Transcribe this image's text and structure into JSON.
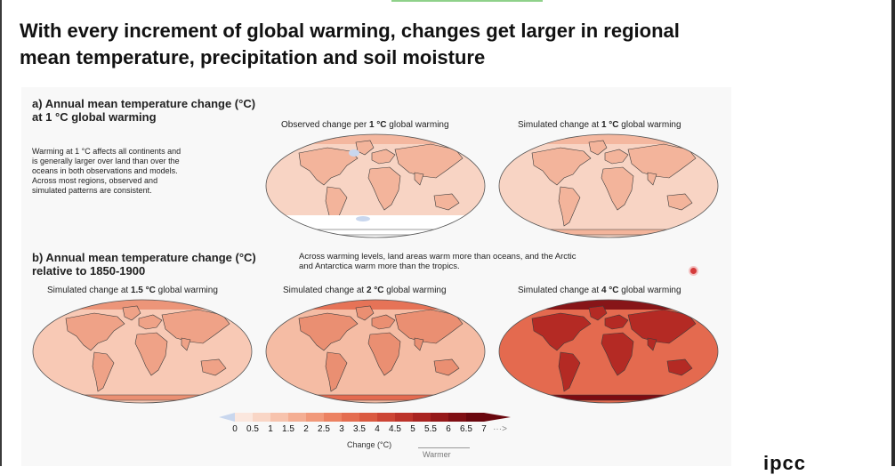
{
  "slide": {
    "title": "With every increment of global warming, changes get larger in regional mean temperature, precipitation and soil moisture"
  },
  "section_a": {
    "title_line1": "a) Annual mean temperature change (°C)",
    "title_line2": "at 1 °C global warming",
    "description": [
      "Warming at 1 °C affects all continents and",
      "is generally larger over land than over the",
      "oceans in both observations and models.",
      "Across most regions, observed and",
      "simulated patterns are consistent."
    ],
    "maps": [
      {
        "caption_pre": "Observed change per ",
        "caption_bold": "1 °C",
        "caption_post": " global warming",
        "level_c": 1,
        "observed": true
      },
      {
        "caption_pre": "Simulated change at ",
        "caption_bold": "1 °C",
        "caption_post": " global warming",
        "level_c": 1,
        "observed": false
      }
    ]
  },
  "section_b": {
    "title_line1": "b) Annual mean temperature change (°C)",
    "title_line2": "relative to 1850-1900",
    "note_line1": "Across warming levels, land areas warm more than oceans, and the Arctic",
    "note_line2": "and Antarctica warm more than the tropics.",
    "maps": [
      {
        "caption_pre": "Simulated change at ",
        "caption_bold": "1.5 °C",
        "caption_post": " global warming",
        "level_c": 1.5
      },
      {
        "caption_pre": "Simulated change at ",
        "caption_bold": "2 °C",
        "caption_post": " global warming",
        "level_c": 2
      },
      {
        "caption_pre": "Simulated change at ",
        "caption_bold": "4 °C",
        "caption_post": " global warming",
        "level_c": 4
      }
    ]
  },
  "colorbar": {
    "ticks": [
      "0",
      "0.5",
      "1",
      "1.5",
      "2",
      "2.5",
      "3",
      "3.5",
      "4",
      "4.5",
      "5",
      "5.5",
      "6",
      "6.5",
      "7"
    ],
    "colors": [
      "#fbe7de",
      "#f9d6c6",
      "#f7c3ad",
      "#f4ae93",
      "#f1997a",
      "#ec8262",
      "#e46d50",
      "#da5a41",
      "#cc4535",
      "#bc332a",
      "#a92421",
      "#951819",
      "#7f0e13",
      "#6a070e"
    ],
    "negative_color": "#c9d7ee",
    "arrow": "···>",
    "unit_label": "Change (°C)",
    "direction_label": "Warmer"
  },
  "logo": {
    "text": "ipcc"
  },
  "colors": {
    "ocean_1c": "#f8d4c4",
    "land_1c": "#f3b49b",
    "ocean_1_5c": "#f8c9b5",
    "land_1_5c": "#efa287",
    "ocean_2c": "#f5bca4",
    "land_2c": "#ea8f72",
    "ocean_4c": "#e46a4f",
    "land_4c": "#b42a24",
    "arctic_4c": "#7c0c12"
  }
}
